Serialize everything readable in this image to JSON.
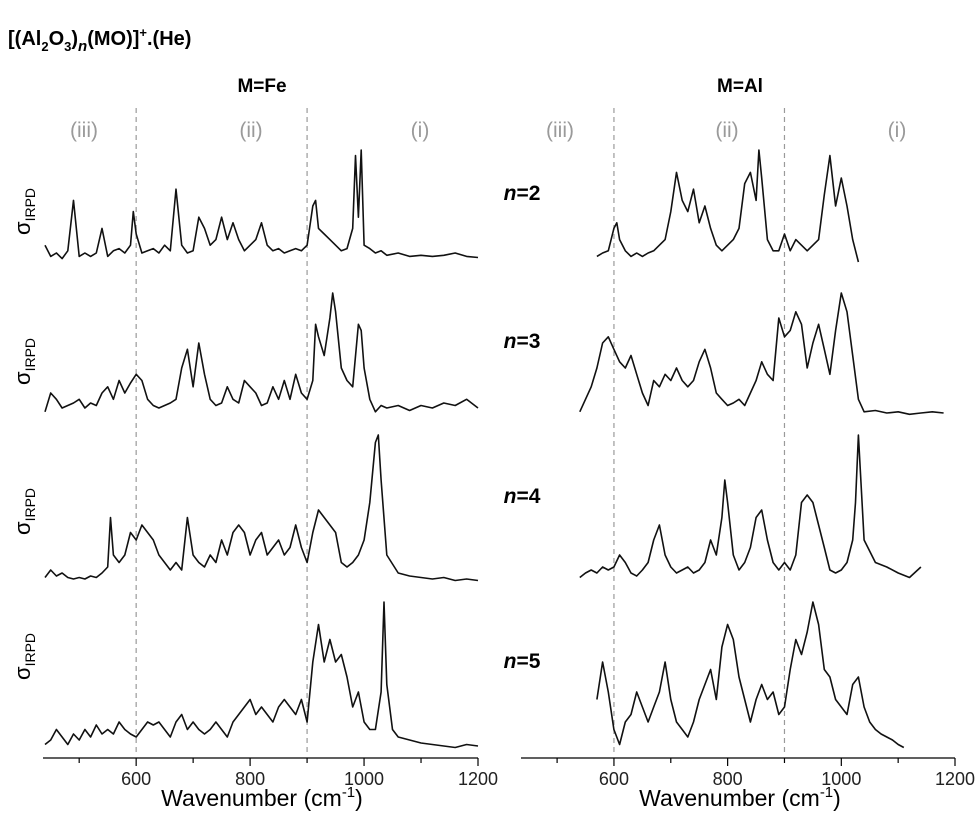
{
  "figure": {
    "title_parts": [
      "[(Al",
      "2",
      "O",
      "3",
      ")",
      "n",
      "(MO)]",
      "+",
      ".(He)"
    ],
    "region_labels": [
      "(iii)",
      "(ii)",
      "(i)"
    ],
    "y_label_main": "σ",
    "y_label_sub": "IRPD",
    "row_labels": [
      "n=2",
      "n=3",
      "n=4",
      "n=5"
    ],
    "row_label_n": "n",
    "row_label_values": [
      "=2",
      "=3",
      "=4",
      "=5"
    ],
    "x_label_main": "Wavenumber (cm",
    "x_label_sup": "-1",
    "x_label_end": ")",
    "colors": {
      "trace": "#111111",
      "divider": "#9a9a9a",
      "region_text": "#9a9a9a"
    }
  },
  "chart_data": [
    {
      "type": "line",
      "title": "M=Fe",
      "xlabel": "Wavenumber (cm-1)",
      "ylabel": "σIRPD",
      "xlim": [
        440,
        1200
      ],
      "xticks": [
        600,
        800,
        1000,
        1200
      ],
      "dividers_x": [
        600,
        900
      ],
      "series": [
        {
          "name": "n=2",
          "x": [
            440,
            450,
            460,
            470,
            480,
            490,
            500,
            510,
            520,
            530,
            540,
            550,
            560,
            570,
            580,
            590,
            595,
            600,
            610,
            620,
            630,
            640,
            650,
            660,
            670,
            680,
            690,
            700,
            710,
            720,
            730,
            740,
            750,
            760,
            770,
            780,
            790,
            800,
            810,
            820,
            830,
            840,
            850,
            860,
            870,
            880,
            890,
            900,
            910,
            915,
            920,
            930,
            940,
            950,
            960,
            970,
            980,
            985,
            990,
            995,
            1000,
            1010,
            1020,
            1030,
            1040,
            1060,
            1080,
            1100,
            1120,
            1140,
            1160,
            1180,
            1200
          ],
          "y": [
            0.15,
            0.05,
            0.08,
            0.03,
            0.1,
            0.55,
            0.05,
            0.08,
            0.05,
            0.08,
            0.3,
            0.05,
            0.1,
            0.12,
            0.08,
            0.15,
            0.45,
            0.25,
            0.08,
            0.1,
            0.12,
            0.08,
            0.15,
            0.1,
            0.65,
            0.15,
            0.08,
            0.1,
            0.4,
            0.3,
            0.15,
            0.2,
            0.4,
            0.2,
            0.35,
            0.2,
            0.1,
            0.15,
            0.2,
            0.35,
            0.15,
            0.1,
            0.12,
            0.08,
            0.1,
            0.12,
            0.1,
            0.15,
            0.5,
            0.55,
            0.3,
            0.25,
            0.2,
            0.15,
            0.1,
            0.12,
            0.3,
            0.95,
            0.4,
            1.0,
            0.15,
            0.12,
            0.08,
            0.1,
            0.06,
            0.08,
            0.05,
            0.06,
            0.05,
            0.06,
            0.08,
            0.05,
            0.04
          ]
        },
        {
          "name": "n=3",
          "x": [
            440,
            450,
            460,
            470,
            480,
            490,
            500,
            510,
            520,
            530,
            540,
            550,
            560,
            570,
            580,
            590,
            600,
            610,
            620,
            630,
            640,
            650,
            660,
            670,
            680,
            690,
            700,
            710,
            720,
            730,
            740,
            750,
            760,
            770,
            780,
            790,
            800,
            810,
            820,
            830,
            840,
            850,
            860,
            870,
            880,
            890,
            900,
            910,
            915,
            920,
            930,
            940,
            945,
            950,
            960,
            970,
            980,
            990,
            995,
            1000,
            1010,
            1020,
            1030,
            1040,
            1060,
            1080,
            1100,
            1120,
            1140,
            1160,
            1180,
            1200
          ],
          "y": [
            0.05,
            0.2,
            0.15,
            0.08,
            0.1,
            0.12,
            0.15,
            0.08,
            0.12,
            0.1,
            0.2,
            0.25,
            0.15,
            0.3,
            0.2,
            0.28,
            0.35,
            0.3,
            0.15,
            0.1,
            0.08,
            0.1,
            0.12,
            0.15,
            0.4,
            0.55,
            0.25,
            0.6,
            0.35,
            0.15,
            0.1,
            0.12,
            0.25,
            0.15,
            0.12,
            0.3,
            0.25,
            0.2,
            0.1,
            0.12,
            0.25,
            0.15,
            0.3,
            0.15,
            0.35,
            0.2,
            0.15,
            0.3,
            0.75,
            0.65,
            0.5,
            0.8,
            1.0,
            0.85,
            0.4,
            0.3,
            0.25,
            0.75,
            0.7,
            0.4,
            0.15,
            0.05,
            0.1,
            0.08,
            0.1,
            0.06,
            0.1,
            0.08,
            0.12,
            0.1,
            0.15,
            0.08
          ]
        },
        {
          "name": "n=4",
          "x": [
            440,
            450,
            460,
            470,
            480,
            490,
            500,
            510,
            520,
            530,
            540,
            550,
            555,
            560,
            570,
            580,
            590,
            600,
            610,
            620,
            630,
            640,
            650,
            660,
            670,
            680,
            690,
            700,
            710,
            720,
            730,
            740,
            750,
            760,
            770,
            780,
            790,
            800,
            810,
            820,
            830,
            840,
            850,
            860,
            870,
            880,
            890,
            900,
            910,
            920,
            930,
            940,
            950,
            960,
            970,
            980,
            990,
            1000,
            1010,
            1020,
            1025,
            1030,
            1040,
            1060,
            1080,
            1100,
            1120,
            1140,
            1160,
            1180,
            1200
          ],
          "y": [
            0.05,
            0.1,
            0.06,
            0.08,
            0.05,
            0.04,
            0.05,
            0.04,
            0.06,
            0.05,
            0.08,
            0.12,
            0.45,
            0.2,
            0.15,
            0.2,
            0.35,
            0.3,
            0.4,
            0.35,
            0.3,
            0.2,
            0.15,
            0.1,
            0.15,
            0.1,
            0.45,
            0.2,
            0.15,
            0.12,
            0.2,
            0.15,
            0.3,
            0.2,
            0.35,
            0.4,
            0.35,
            0.2,
            0.3,
            0.35,
            0.2,
            0.25,
            0.3,
            0.2,
            0.25,
            0.4,
            0.25,
            0.15,
            0.35,
            0.5,
            0.45,
            0.4,
            0.35,
            0.15,
            0.12,
            0.15,
            0.2,
            0.3,
            0.55,
            0.95,
            1.0,
            0.7,
            0.2,
            0.08,
            0.06,
            0.05,
            0.04,
            0.05,
            0.03,
            0.04,
            0.03
          ]
        },
        {
          "name": "n=5",
          "x": [
            440,
            450,
            460,
            470,
            480,
            490,
            500,
            510,
            520,
            530,
            540,
            550,
            560,
            570,
            580,
            590,
            600,
            610,
            620,
            630,
            640,
            650,
            660,
            670,
            680,
            690,
            700,
            710,
            720,
            730,
            740,
            750,
            760,
            770,
            780,
            790,
            800,
            810,
            820,
            830,
            840,
            850,
            860,
            870,
            880,
            890,
            900,
            910,
            920,
            930,
            940,
            950,
            960,
            970,
            980,
            990,
            1000,
            1010,
            1020,
            1030,
            1035,
            1040,
            1050,
            1060,
            1080,
            1100,
            1120,
            1140,
            1160,
            1180,
            1200
          ],
          "y": [
            0.05,
            0.08,
            0.15,
            0.1,
            0.05,
            0.12,
            0.08,
            0.15,
            0.1,
            0.18,
            0.12,
            0.15,
            0.12,
            0.2,
            0.15,
            0.12,
            0.1,
            0.15,
            0.2,
            0.18,
            0.2,
            0.15,
            0.1,
            0.2,
            0.25,
            0.15,
            0.2,
            0.15,
            0.12,
            0.15,
            0.2,
            0.15,
            0.1,
            0.2,
            0.25,
            0.3,
            0.35,
            0.25,
            0.3,
            0.25,
            0.2,
            0.3,
            0.35,
            0.3,
            0.25,
            0.35,
            0.2,
            0.6,
            0.85,
            0.6,
            0.75,
            0.6,
            0.65,
            0.5,
            0.3,
            0.4,
            0.2,
            0.15,
            0.15,
            0.4,
            1.0,
            0.45,
            0.15,
            0.1,
            0.08,
            0.06,
            0.05,
            0.04,
            0.03,
            0.05,
            0.04
          ]
        }
      ]
    },
    {
      "type": "line",
      "title": "M=Al",
      "xlabel": "Wavenumber (cm-1)",
      "ylabel": "",
      "xlim": [
        440,
        1200
      ],
      "xticks": [
        600,
        800,
        1000,
        1200
      ],
      "dividers_x": [
        600,
        900
      ],
      "series": [
        {
          "name": "n=2",
          "x": [
            570,
            580,
            590,
            600,
            605,
            610,
            620,
            630,
            640,
            650,
            660,
            670,
            680,
            690,
            700,
            710,
            720,
            730,
            740,
            750,
            760,
            770,
            780,
            790,
            800,
            810,
            820,
            830,
            840,
            850,
            855,
            860,
            870,
            880,
            890,
            900,
            910,
            920,
            930,
            940,
            950,
            960,
            970,
            980,
            990,
            1000,
            1010,
            1020,
            1030
          ],
          "y": [
            0.05,
            0.08,
            0.1,
            0.3,
            0.35,
            0.2,
            0.1,
            0.05,
            0.08,
            0.05,
            0.08,
            0.1,
            0.15,
            0.2,
            0.45,
            0.8,
            0.55,
            0.45,
            0.65,
            0.35,
            0.5,
            0.3,
            0.15,
            0.1,
            0.15,
            0.2,
            0.3,
            0.7,
            0.8,
            0.55,
            1.0,
            0.75,
            0.2,
            0.1,
            0.1,
            0.25,
            0.1,
            0.2,
            0.15,
            0.1,
            0.15,
            0.2,
            0.6,
            0.95,
            0.5,
            0.75,
            0.5,
            0.2,
            0.0
          ]
        },
        {
          "name": "n=3",
          "x": [
            540,
            550,
            560,
            570,
            580,
            590,
            600,
            610,
            620,
            630,
            640,
            650,
            660,
            670,
            680,
            690,
            700,
            710,
            720,
            730,
            740,
            750,
            760,
            770,
            780,
            790,
            800,
            810,
            820,
            830,
            840,
            850,
            860,
            870,
            880,
            890,
            900,
            910,
            920,
            930,
            940,
            950,
            960,
            970,
            980,
            990,
            1000,
            1010,
            1020,
            1030,
            1040,
            1060,
            1080,
            1100,
            1120,
            1140,
            1160,
            1180
          ],
          "y": [
            0.05,
            0.15,
            0.25,
            0.4,
            0.6,
            0.65,
            0.55,
            0.45,
            0.4,
            0.5,
            0.35,
            0.2,
            0.1,
            0.3,
            0.25,
            0.35,
            0.3,
            0.4,
            0.3,
            0.25,
            0.3,
            0.45,
            0.55,
            0.4,
            0.2,
            0.15,
            0.1,
            0.12,
            0.15,
            0.1,
            0.2,
            0.3,
            0.45,
            0.35,
            0.3,
            0.8,
            0.65,
            0.7,
            0.85,
            0.75,
            0.4,
            0.6,
            0.75,
            0.55,
            0.35,
            0.7,
            1.0,
            0.85,
            0.5,
            0.15,
            0.05,
            0.06,
            0.04,
            0.05,
            0.03,
            0.04,
            0.05,
            0.04
          ]
        },
        {
          "name": "n=4",
          "x": [
            540,
            550,
            560,
            570,
            580,
            590,
            600,
            610,
            620,
            630,
            640,
            650,
            660,
            670,
            680,
            690,
            700,
            710,
            720,
            730,
            740,
            750,
            760,
            770,
            780,
            790,
            795,
            800,
            810,
            820,
            830,
            840,
            850,
            860,
            870,
            880,
            890,
            900,
            910,
            920,
            930,
            940,
            950,
            960,
            970,
            980,
            990,
            1000,
            1010,
            1020,
            1025,
            1030,
            1040,
            1060,
            1080,
            1100,
            1120,
            1140
          ],
          "y": [
            0.05,
            0.08,
            0.1,
            0.08,
            0.12,
            0.1,
            0.12,
            0.2,
            0.15,
            0.08,
            0.06,
            0.1,
            0.15,
            0.3,
            0.4,
            0.2,
            0.12,
            0.08,
            0.1,
            0.12,
            0.08,
            0.1,
            0.15,
            0.3,
            0.2,
            0.45,
            0.7,
            0.55,
            0.2,
            0.1,
            0.15,
            0.25,
            0.45,
            0.5,
            0.3,
            0.15,
            0.1,
            0.15,
            0.1,
            0.2,
            0.55,
            0.6,
            0.55,
            0.4,
            0.25,
            0.1,
            0.08,
            0.1,
            0.15,
            0.3,
            0.55,
            1.0,
            0.3,
            0.15,
            0.12,
            0.08,
            0.05,
            0.12
          ]
        },
        {
          "name": "n=5",
          "x": [
            570,
            580,
            590,
            600,
            610,
            620,
            630,
            640,
            650,
            660,
            670,
            680,
            690,
            700,
            710,
            720,
            730,
            740,
            750,
            760,
            770,
            780,
            790,
            800,
            810,
            820,
            830,
            840,
            850,
            860,
            870,
            880,
            890,
            900,
            910,
            920,
            930,
            940,
            950,
            960,
            970,
            980,
            990,
            1000,
            1010,
            1020,
            1030,
            1040,
            1050,
            1060,
            1070,
            1080,
            1090,
            1100,
            1110
          ],
          "y": [
            0.35,
            0.6,
            0.4,
            0.15,
            0.05,
            0.2,
            0.25,
            0.4,
            0.3,
            0.2,
            0.3,
            0.4,
            0.6,
            0.35,
            0.2,
            0.15,
            0.1,
            0.2,
            0.35,
            0.45,
            0.55,
            0.35,
            0.7,
            0.85,
            0.75,
            0.5,
            0.35,
            0.2,
            0.35,
            0.45,
            0.35,
            0.4,
            0.25,
            0.3,
            0.55,
            0.75,
            0.65,
            0.8,
            1.0,
            0.85,
            0.55,
            0.5,
            0.35,
            0.3,
            0.25,
            0.45,
            0.5,
            0.3,
            0.2,
            0.15,
            0.12,
            0.1,
            0.08,
            0.05,
            0.03
          ]
        }
      ]
    }
  ]
}
